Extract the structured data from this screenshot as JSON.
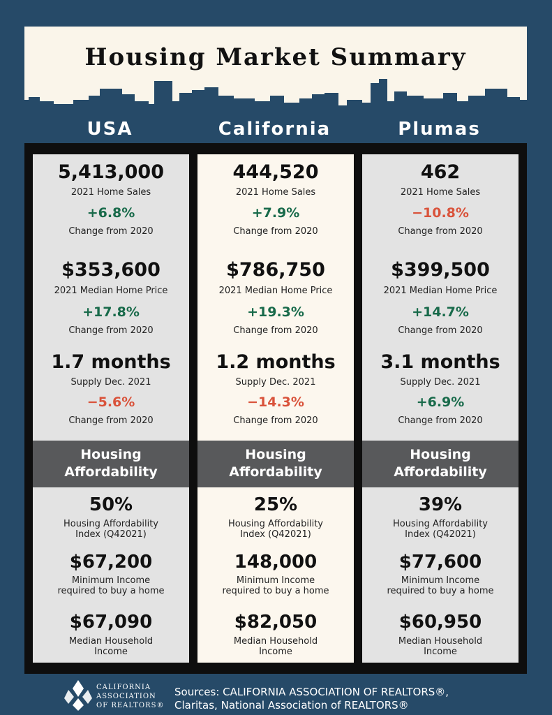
{
  "title": "Housing Market Summary",
  "colors": {
    "background": "#264a68",
    "positive": "#186a4a",
    "negative": "#d9523a",
    "band": "#58595b",
    "header_bg": "#faf5ea"
  },
  "columns": [
    {
      "name": "USA",
      "home_sales": "5,413,000",
      "home_sales_label": "2021 Home Sales",
      "home_sales_change": "+6.8%",
      "home_sales_change_label": "Change from 2020",
      "median_price": "$353,600",
      "median_price_label": "2021 Median Home Price",
      "median_price_change": "+17.8%",
      "median_price_change_label": "Change from 2020",
      "supply": "1.7 months",
      "supply_label": "Supply Dec. 2021",
      "supply_change": "−5.6%",
      "supply_change_label": "Change from 2020",
      "band_line1": "Housing",
      "band_line2": "Affordability",
      "hai": "50%",
      "hai_label1": "Housing Affordability",
      "hai_label2": "Index (Q42021)",
      "min_income": "$67,200",
      "min_income_label1": "Minimum Income",
      "min_income_label2": "required to buy a home",
      "median_income": "$67,090",
      "median_income_label1": "Median Household",
      "median_income_label2": "Income"
    },
    {
      "name": "California",
      "home_sales": "444,520",
      "home_sales_label": "2021 Home Sales",
      "home_sales_change": "+7.9%",
      "home_sales_change_label": "Change from 2020",
      "median_price": "$786,750",
      "median_price_label": "2021 Median Home Price",
      "median_price_change": "+19.3%",
      "median_price_change_label": "Change from 2020",
      "supply": "1.2 months",
      "supply_label": "Supply Dec. 2021",
      "supply_change": "−14.3%",
      "supply_change_label": "Change from 2020",
      "band_line1": "Housing",
      "band_line2": "Affordability",
      "hai": "25%",
      "hai_label1": "Housing Affordability",
      "hai_label2": "Index (Q42021)",
      "min_income": "148,000",
      "min_income_label1": "Minimum Income",
      "min_income_label2": "required to buy a home",
      "median_income": "$82,050",
      "median_income_label1": "Median Household",
      "median_income_label2": "Income"
    },
    {
      "name": "Plumas",
      "home_sales": "462",
      "home_sales_label": "2021 Home Sales",
      "home_sales_change": "−10.8%",
      "home_sales_change_label": "Change from 2020",
      "median_price": "$399,500",
      "median_price_label": "2021 Median Home Price",
      "median_price_change": "+14.7%",
      "median_price_change_label": "Change from 2020",
      "supply": "3.1 months",
      "supply_label": "Supply Dec. 2021",
      "supply_change": "+6.9%",
      "supply_change_label": "Change from 2020",
      "band_line1": "Housing",
      "band_line2": "Affordability",
      "hai": "39%",
      "hai_label1": "Housing Affordability",
      "hai_label2": "Index (Q42021)",
      "min_income": "$77,600",
      "min_income_label1": "Minimum Income",
      "min_income_label2": "required to buy a home",
      "median_income": "$60,950",
      "median_income_label1": "Median Household",
      "median_income_label2": "Income"
    }
  ],
  "footer": {
    "logo_line1": "CALIFORNIA",
    "logo_line2": "ASSOCIATION",
    "logo_line3": "OF REALTORS®",
    "logo_icon": "car-logo-icon",
    "sources_line1": "Sources: CALIFORNIA ASSOCIATION OF REALTORS®,",
    "sources_line2": "Claritas, National Association of REALTORS®"
  }
}
